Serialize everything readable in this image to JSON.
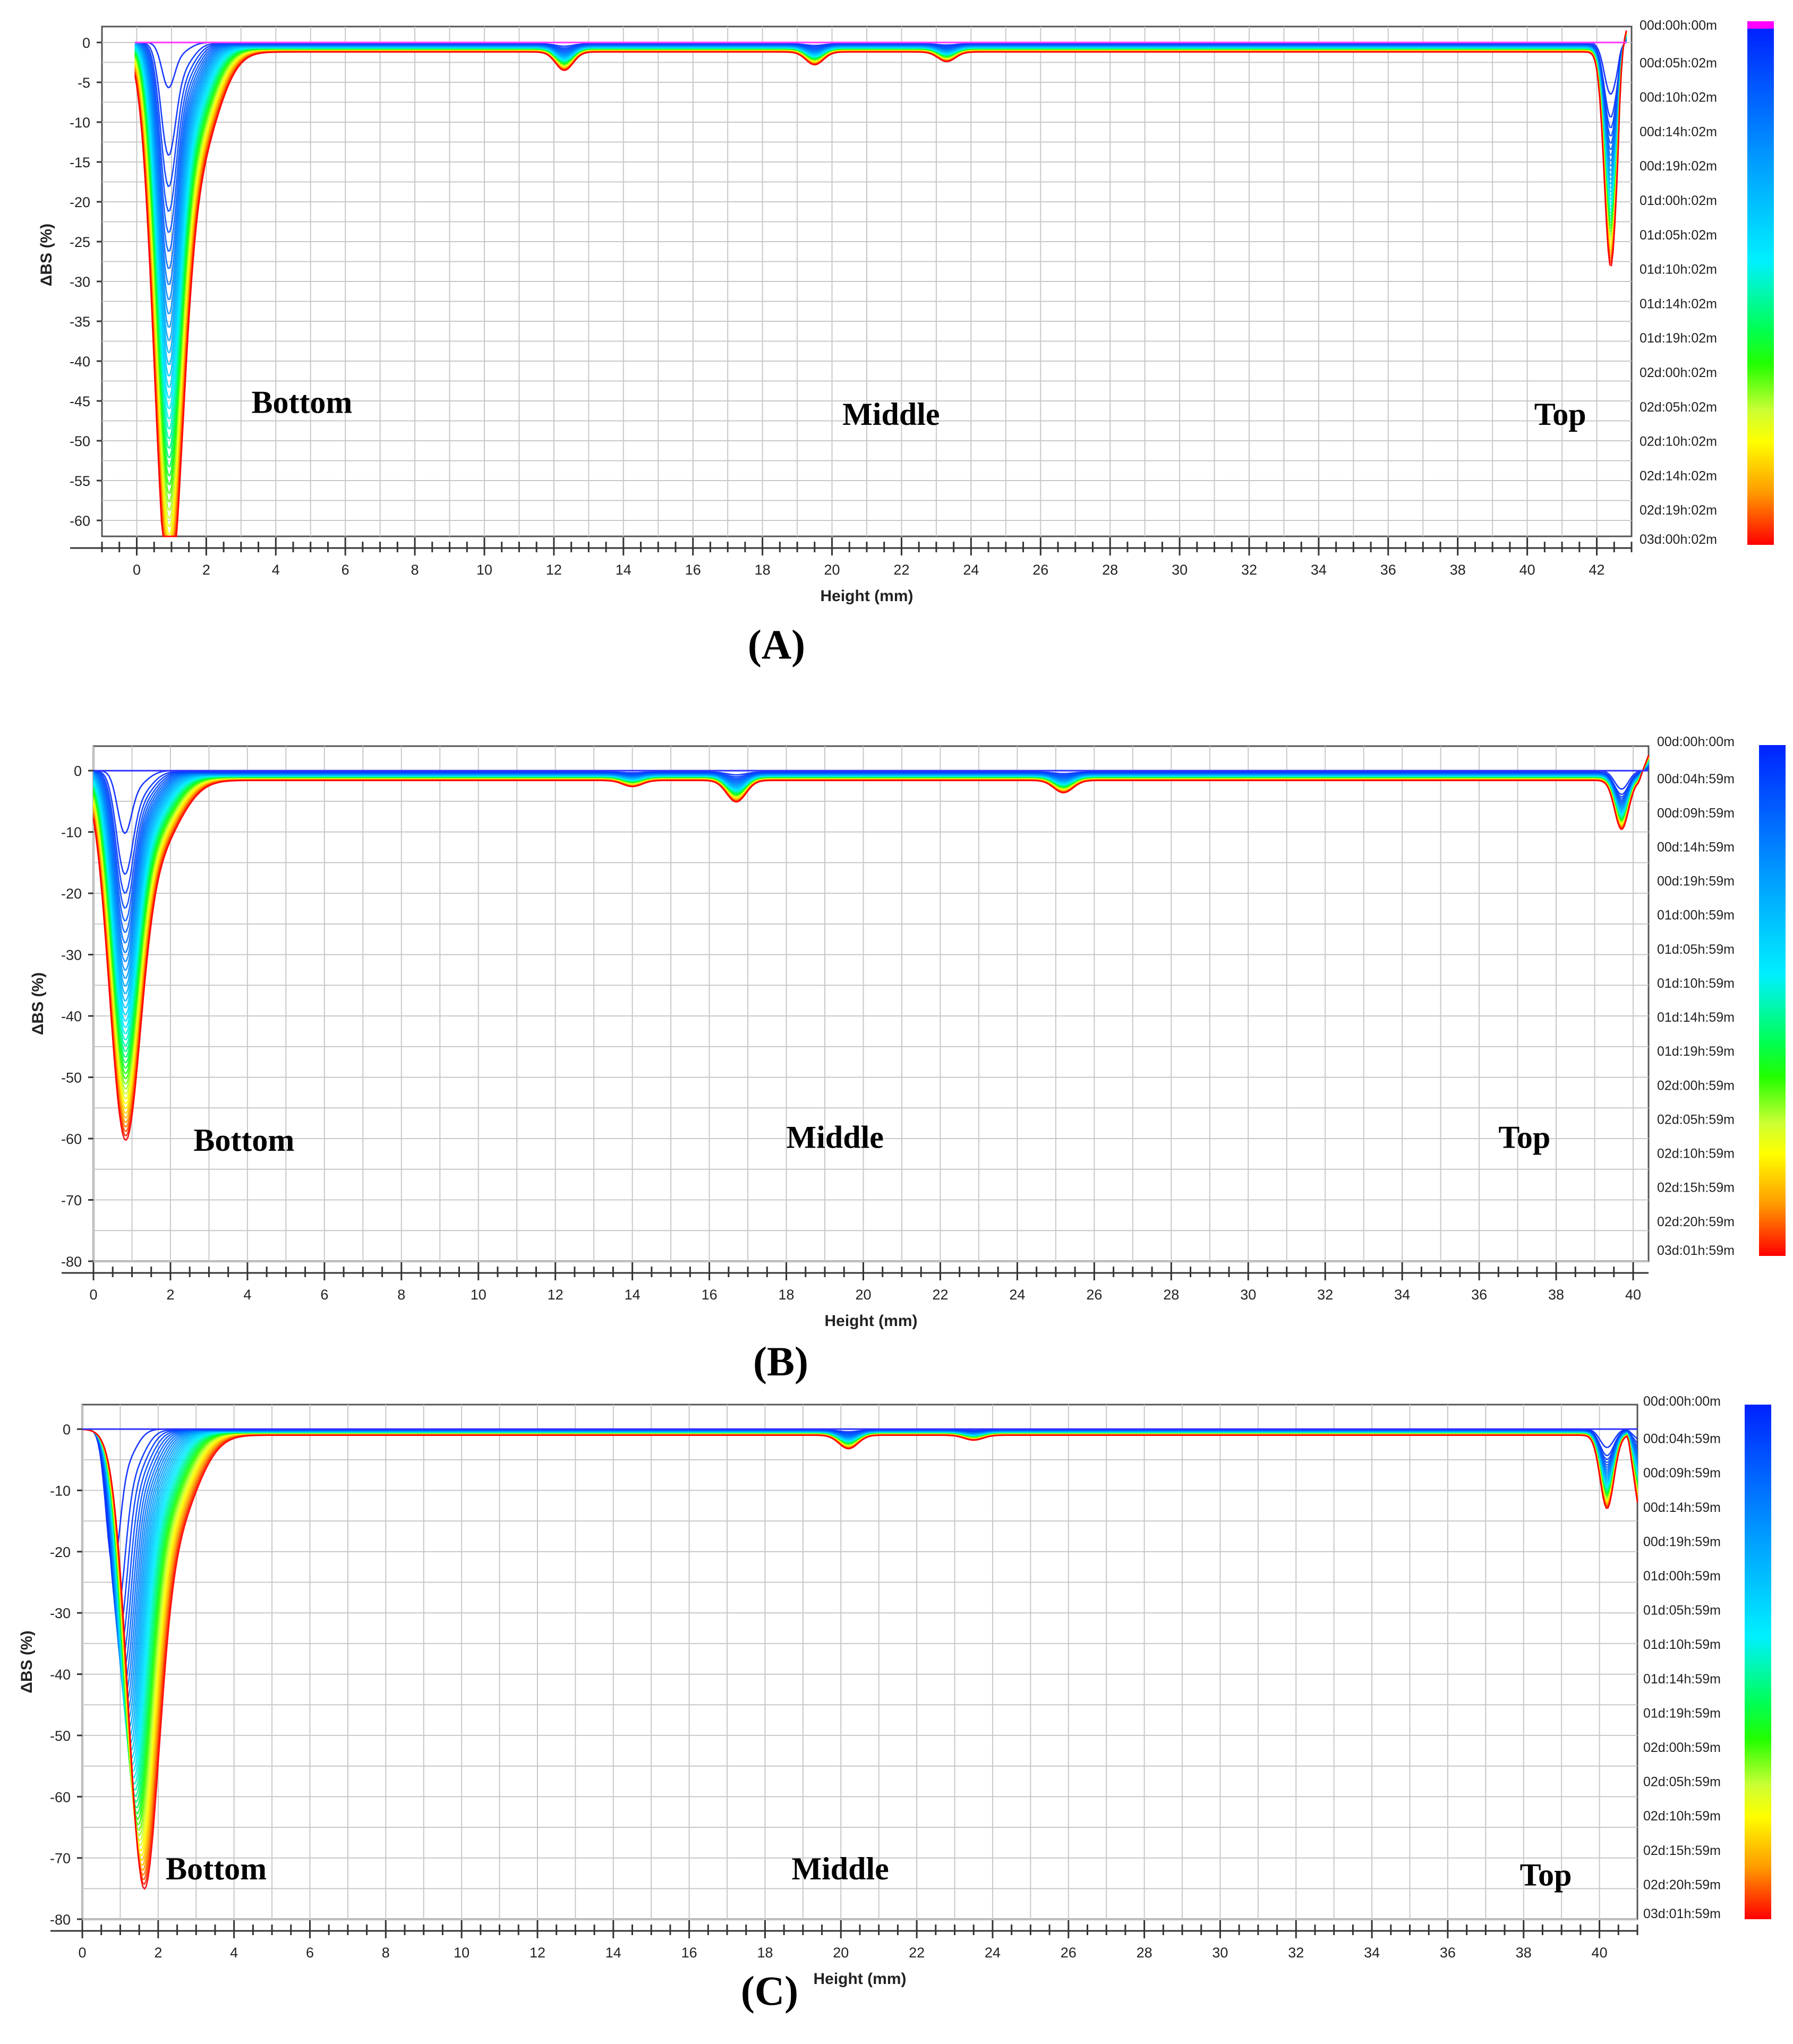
{
  "chart_data": [
    {
      "panel": "(A)",
      "type": "line",
      "xlabel": "Height (mm)",
      "ylabel": "ΔBS (%)",
      "xlim": [
        -1,
        43
      ],
      "ylim": [
        -62,
        2
      ],
      "xticks": [
        0,
        2,
        4,
        6,
        8,
        10,
        12,
        14,
        16,
        18,
        20,
        22,
        24,
        26,
        28,
        30,
        32,
        34,
        36,
        38,
        40,
        42
      ],
      "yticks": [
        0,
        -5,
        -10,
        -15,
        -20,
        -25,
        -30,
        -35,
        -40,
        -45,
        -50,
        -55,
        -60
      ],
      "grid": true,
      "zero_line_color": "#ff33ff",
      "annotations": [
        {
          "text": "Bottom",
          "x": 3.3,
          "y": -46.5
        },
        {
          "text": "Middle",
          "x": 20.3,
          "y": -48
        },
        {
          "text": "Top",
          "x": 40.2,
          "y": -48
        }
      ],
      "legend": {
        "placement": "right colorbar",
        "labels": [
          "00d:00h:00m",
          "00d:05h:02m",
          "00d:10h:02m",
          "00d:14h:02m",
          "00d:19h:02m",
          "01d:00h:02m",
          "01d:05h:02m",
          "01d:10h:02m",
          "01d:14h:02m",
          "01d:19h:02m",
          "02d:00h:02m",
          "02d:05h:02m",
          "02d:10h:02m",
          "02d:14h:02m",
          "02d:19h:02m",
          "03d:00h:02m"
        ]
      },
      "profile": {
        "edge_x": [
          -0.05,
          42.85
        ],
        "bottom_peak": {
          "x": 0.9,
          "depth_first": 5,
          "depth_last": 61
        },
        "top_peak": {
          "x": 42.4,
          "depth_first": 6.5,
          "depth_last": 27
        },
        "dips": [
          {
            "x": 12.3,
            "depth": 2.3
          },
          {
            "x": 19.5,
            "depth": 1.6
          },
          {
            "x": 23.3,
            "depth": 1.2
          }
        ],
        "plateau": -1.2,
        "top_end_value": 1.5,
        "curve_count": 40
      }
    },
    {
      "panel": "(B)",
      "type": "line",
      "xlabel": "Height (mm)",
      "ylabel": "ΔBS (%)",
      "xlim": [
        0,
        40.4
      ],
      "ylim": [
        -80,
        4
      ],
      "xticks": [
        0,
        2,
        4,
        6,
        8,
        10,
        12,
        14,
        16,
        18,
        20,
        22,
        24,
        26,
        28,
        30,
        32,
        34,
        36,
        38,
        40
      ],
      "yticks": [
        0,
        -10,
        -20,
        -30,
        -40,
        -50,
        -60,
        -70,
        -80
      ],
      "grid": true,
      "zero_line_color": "#3333ff",
      "annotations": [
        {
          "text": "Bottom",
          "x": 2.6,
          "y": -62
        },
        {
          "text": "Middle",
          "x": 18.0,
          "y": -61.5
        },
        {
          "text": "Top",
          "x": 36.5,
          "y": -61.5
        }
      ],
      "legend": {
        "placement": "right colorbar",
        "labels": [
          "00d:00h:00m",
          "00d:04h:59m",
          "00d:09h:59m",
          "00d:14h:59m",
          "00d:19h:59m",
          "01d:00h:59m",
          "01d:05h:59m",
          "01d:10h:59m",
          "01d:14h:59m",
          "01d:19h:59m",
          "02d:00h:59m",
          "02d:05h:59m",
          "02d:10h:59m",
          "02d:15h:59m",
          "02d:20h:59m",
          "03d:01h:59m"
        ]
      },
      "profile": {
        "edge_x": [
          0,
          40.4
        ],
        "bottom_peak": {
          "x": 0.8,
          "depth_first": 9,
          "depth_last": 53
        },
        "top_peak": {
          "x": 39.7,
          "depth_first": 3,
          "depth_last": 8
        },
        "dips": [
          {
            "x": 16.7,
            "depth": 3.5
          },
          {
            "x": 25.2,
            "depth": 2.0
          },
          {
            "x": 14.0,
            "depth": 1.0
          }
        ],
        "plateau": -1.6,
        "top_end_value": 2.5,
        "curve_count": 40
      }
    },
    {
      "panel": "(C)",
      "type": "line",
      "xlabel": "Height (mm)",
      "ylabel": "ΔBS (%)",
      "xlim": [
        0,
        41
      ],
      "ylim": [
        -80,
        4
      ],
      "xticks": [
        0,
        2,
        4,
        6,
        8,
        10,
        12,
        14,
        16,
        18,
        20,
        22,
        24,
        26,
        28,
        30,
        32,
        34,
        36,
        38,
        40
      ],
      "yticks": [
        0,
        -10,
        -20,
        -30,
        -40,
        -50,
        -60,
        -70,
        -80
      ],
      "grid": true,
      "zero_line_color": "#3333ff",
      "annotations": [
        {
          "text": "Bottom",
          "x": 2.2,
          "y": -73.5
        },
        {
          "text": "Middle",
          "x": 18.7,
          "y": -73.5
        },
        {
          "text": "Top",
          "x": 37.9,
          "y": -74.5
        }
      ],
      "legend": {
        "placement": "right colorbar",
        "labels": [
          "00d:00h:00m",
          "00d:04h:59m",
          "00d:09h:59m",
          "00d:14h:59m",
          "00d:19h:59m",
          "01d:00h:59m",
          "01d:05h:59m",
          "01d:10h:59m",
          "01d:14h:59m",
          "01d:19h:59m",
          "02d:00h:59m",
          "02d:05h:59m",
          "02d:10h:59m",
          "02d:15h:59m",
          "02d:20h:59m",
          "03d:01h:59m"
        ]
      },
      "profile": {
        "edge_x": [
          0,
          41
        ],
        "bottom_peak": {
          "x_first": 0.8,
          "x_last": 1.6,
          "depth_first": 20,
          "depth_last": 66
        },
        "top_peak": {
          "x": 40.2,
          "depth_first": 3,
          "depth_last": 12
        },
        "dips": [
          {
            "x": 20.2,
            "depth": 2.2
          },
          {
            "x": 23.5,
            "depth": 0.8
          }
        ],
        "plateau": -1.0,
        "top_end_value": -12,
        "curve_count": 40
      }
    }
  ],
  "colorbar_colors": [
    "#ff00ff",
    "#0033ff",
    "#0099ff",
    "#00e5ff",
    "#00ff66",
    "#33ff00",
    "#ccff33",
    "#ffff00",
    "#ffa500",
    "#ff4500",
    "#ff0000"
  ]
}
